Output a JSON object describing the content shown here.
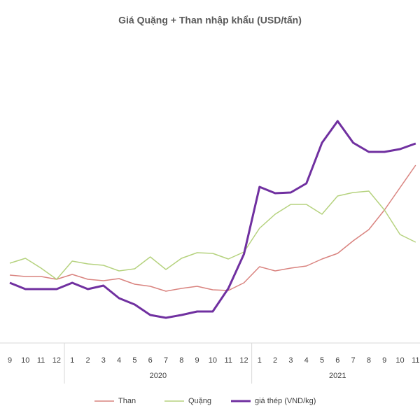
{
  "chart_data": {
    "type": "line",
    "title": "Giá Quặng + Than nhập khẩu (USD/tấn)",
    "categories": [
      "9",
      "10",
      "11",
      "12",
      "1",
      "2",
      "3",
      "4",
      "5",
      "6",
      "7",
      "8",
      "9",
      "10",
      "11",
      "12",
      "1",
      "2",
      "3",
      "4",
      "5",
      "6",
      "7",
      "8",
      "9",
      "10",
      "11"
    ],
    "groups": [
      {
        "label": "2020",
        "start": 4,
        "end": 15
      },
      {
        "label": "2021",
        "start": 16,
        "end": 26
      }
    ],
    "ylim": [
      0,
      500
    ],
    "series": [
      {
        "name": "Than",
        "color": "#d9837f",
        "values": [
          107,
          105,
          105,
          101,
          108,
          101,
          99,
          102,
          94,
          91,
          84,
          88,
          91,
          86,
          85,
          96,
          119,
          113,
          117,
          120,
          130,
          138,
          156,
          172,
          200,
          232,
          264
        ]
      },
      {
        "name": "Quặng",
        "color": "#b5d27e",
        "values": [
          124,
          131,
          117,
          101,
          127,
          123,
          121,
          113,
          116,
          133,
          115,
          131,
          139,
          138,
          130,
          140,
          174,
          194,
          208,
          208,
          194,
          220,
          225,
          227,
          200,
          165,
          154
        ]
      },
      {
        "name": "giá thép (VND/kg)",
        "color": "#7030a0",
        "values": [
          96,
          87,
          87,
          87,
          96,
          87,
          92,
          74,
          65,
          50,
          46,
          50,
          55,
          55,
          88,
          137,
          233,
          224,
          225,
          238,
          296,
          327,
          296,
          283,
          283,
          287,
          295
        ]
      }
    ]
  }
}
